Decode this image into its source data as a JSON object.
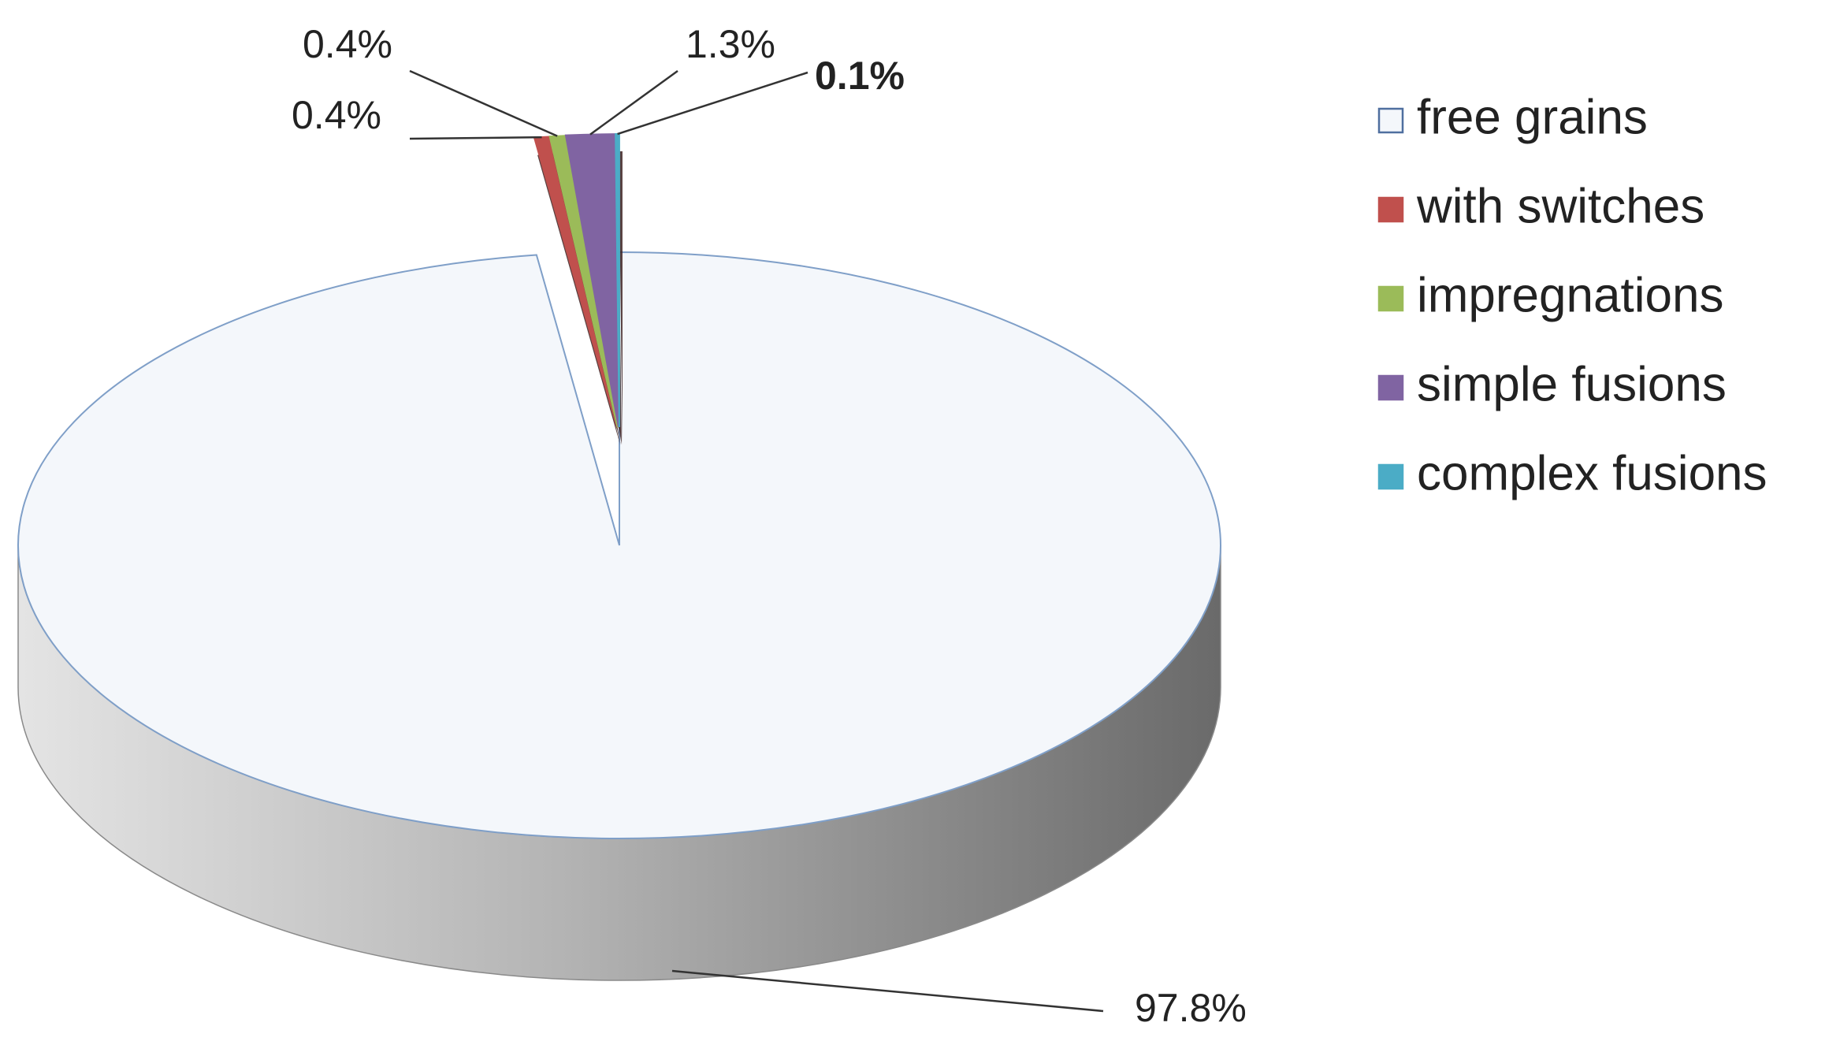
{
  "chart_data": {
    "type": "pie3d",
    "categories": [
      "free grains",
      "with switches",
      "impregnations",
      "simple fusions",
      "complex fusions"
    ],
    "values": [
      97.8,
      0.4,
      0.4,
      1.3,
      0.1
    ],
    "value_labels": [
      "97.8%",
      "0.4%",
      "0.4%",
      "1.3%",
      "0.1%"
    ],
    "colors": [
      "#f4f7fb",
      "#c0504d",
      "#9bbb59",
      "#8064a2",
      "#4bacc6"
    ],
    "legend": "right"
  }
}
